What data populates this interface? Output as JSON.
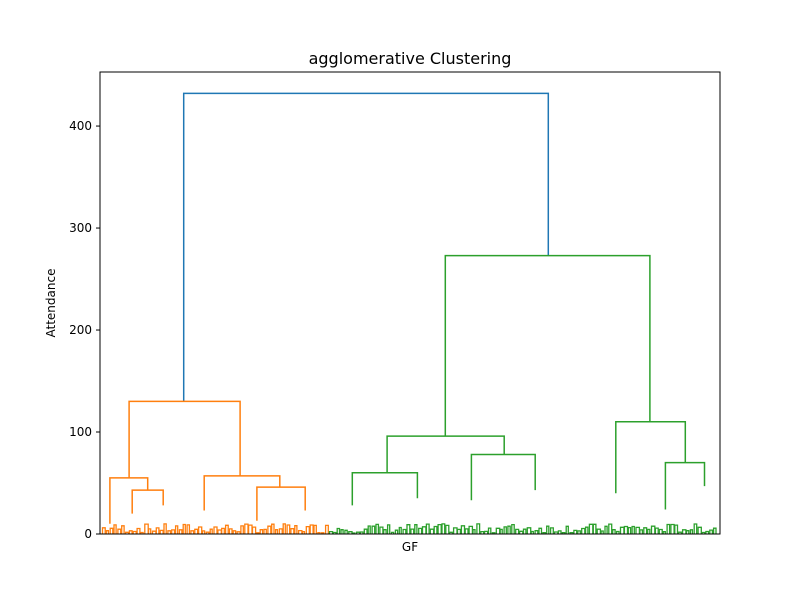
{
  "chart_data": {
    "type": "dendrogram",
    "title": "agglomerative Clustering",
    "xlabel": "GF",
    "ylabel": "Attendance",
    "ylim": [
      0,
      453
    ],
    "xlim": [
      0,
      100
    ],
    "yticks": [
      0,
      100,
      200,
      300,
      400
    ],
    "grid": false,
    "colors": {
      "root": "#1f77b4",
      "cluster_1": "#ff7f0e",
      "cluster_2": "#2ca02c"
    },
    "links": [
      {
        "x": [
          13.5,
          13.5,
          72.3,
          72.3
        ],
        "y": [
          130,
          432,
          432,
          273
        ],
        "c": "root"
      },
      {
        "x": [
          4.7,
          4.7,
          22.6,
          22.6
        ],
        "y": [
          55,
          130,
          130,
          57
        ],
        "c": "cluster_1"
      },
      {
        "x": [
          1.6,
          1.6,
          7.7,
          7.7
        ],
        "y": [
          10,
          55,
          55,
          43
        ],
        "c": "cluster_1"
      },
      {
        "x": [
          5.2,
          5.2,
          10.2,
          10.2
        ],
        "y": [
          20,
          43,
          43,
          28
        ],
        "c": "cluster_1"
      },
      {
        "x": [
          16.8,
          16.8,
          29.0,
          29.0
        ],
        "y": [
          23,
          57,
          57,
          46
        ],
        "c": "cluster_1"
      },
      {
        "x": [
          25.3,
          25.3,
          33.1,
          33.1
        ],
        "y": [
          13,
          46,
          46,
          23
        ],
        "c": "cluster_1"
      },
      {
        "x": [
          55.7,
          55.7,
          88.7,
          88.7
        ],
        "y": [
          96,
          273,
          273,
          110
        ],
        "c": "cluster_2"
      },
      {
        "x": [
          46.3,
          46.3,
          65.2,
          65.2
        ],
        "y": [
          60,
          96,
          96,
          78
        ],
        "c": "cluster_2"
      },
      {
        "x": [
          40.7,
          40.7,
          51.2,
          51.2
        ],
        "y": [
          28,
          60,
          60,
          35
        ],
        "c": "cluster_2"
      },
      {
        "x": [
          59.9,
          59.9,
          70.2,
          70.2
        ],
        "y": [
          33,
          78,
          78,
          43
        ],
        "c": "cluster_2"
      },
      {
        "x": [
          83.2,
          83.2,
          94.4,
          94.4
        ],
        "y": [
          40,
          110,
          110,
          70
        ],
        "c": "cluster_2"
      },
      {
        "x": [
          91.2,
          91.2,
          97.5,
          97.5
        ],
        "y": [
          24,
          70,
          70,
          47
        ],
        "c": "cluster_2"
      }
    ]
  }
}
